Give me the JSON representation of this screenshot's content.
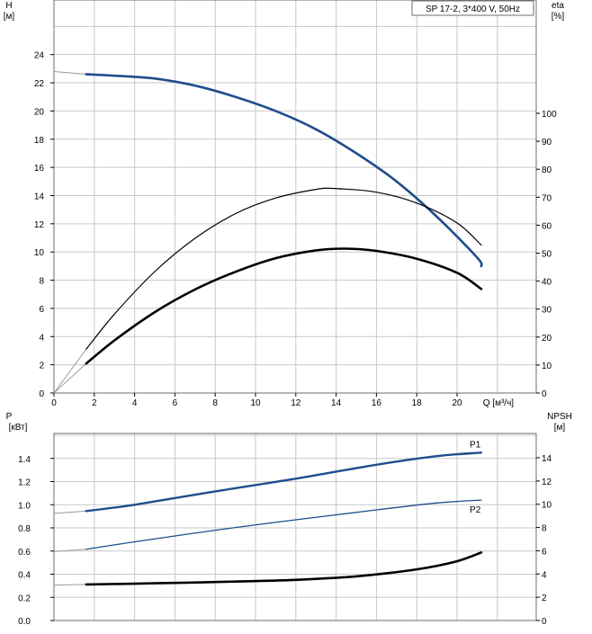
{
  "chart_data": [
    {
      "type": "line",
      "title": "SP 17-2, 3*400 V, 50Hz",
      "xlabel": "Q [м³/ч]",
      "ylabel": "H",
      "ylabel_unit": "[м]",
      "y2label": "eta",
      "y2label_unit": "[%]",
      "xlim": [
        0,
        22
      ],
      "ylim": [
        0,
        26
      ],
      "y2lim": [
        0,
        100
      ],
      "x_ticks": [
        "0",
        "2",
        "4",
        "6",
        "8",
        "10",
        "12",
        "14",
        "16",
        "18",
        "20"
      ],
      "y_ticks": [
        "0",
        "2",
        "4",
        "6",
        "8",
        "10",
        "12",
        "14",
        "16",
        "18",
        "20",
        "22",
        "24"
      ],
      "y2_ticks": [
        "0",
        "10",
        "20",
        "30",
        "40",
        "50",
        "60",
        "70",
        "80",
        "90",
        "100"
      ],
      "grid": true,
      "series": [
        {
          "axis": "left",
          "color": "#1f4e8c",
          "points": [
            [
              1.6,
              22.6
            ],
            [
              3,
              22.5
            ],
            [
              5,
              22.3
            ],
            [
              7,
              21.8
            ],
            [
              9,
              21.0
            ],
            [
              11,
              20.0
            ],
            [
              13,
              18.7
            ],
            [
              15,
              17.0
            ],
            [
              17,
              15.0
            ],
            [
              19,
              12.5
            ],
            [
              21,
              9.6
            ],
            [
              21.2,
              9.0
            ]
          ],
          "extension": [
            [
              0,
              22.8
            ],
            [
              1.6,
              22.6
            ]
          ]
        },
        {
          "axis": "right",
          "color": "#000000",
          "points": [
            [
              1.6,
              15.7
            ],
            [
              3,
              28.2
            ],
            [
              5,
              43.4
            ],
            [
              7,
              55.3
            ],
            [
              9,
              64.1
            ],
            [
              11,
              69.7
            ],
            [
              13,
              72.8
            ],
            [
              14,
              73.1
            ],
            [
              16,
              71.8
            ],
            [
              18,
              67.9
            ],
            [
              20,
              60.8
            ],
            [
              21.2,
              52.9
            ]
          ],
          "extension": [
            [
              0,
              0
            ],
            [
              1.6,
              15.7
            ]
          ]
        },
        {
          "axis": "right",
          "color": "#000000",
          "points": [
            [
              1.6,
              10.5
            ],
            [
              3,
              18.8
            ],
            [
              5,
              28.9
            ],
            [
              7,
              37.0
            ],
            [
              9,
              43.3
            ],
            [
              11,
              48.2
            ],
            [
              13,
              51.0
            ],
            [
              14.5,
              51.6
            ],
            [
              16,
              50.8
            ],
            [
              18,
              48.0
            ],
            [
              20,
              43.0
            ],
            [
              21.2,
              37.2
            ]
          ],
          "extension": [
            [
              0,
              0
            ],
            [
              1.6,
              10.5
            ]
          ]
        }
      ]
    },
    {
      "type": "line",
      "ylabel": "P",
      "ylabel_unit": "[кВт]",
      "y2label": "NPSH",
      "y2label_unit": "[м]",
      "xlim": [
        0,
        22
      ],
      "ylim": [
        0,
        1.6
      ],
      "y2lim": [
        0,
        16
      ],
      "y_ticks": [
        "0.0",
        "0.2",
        "0.4",
        "0.6",
        "0.8",
        "1.0",
        "1.2",
        "1.4"
      ],
      "y2_ticks": [
        "0",
        "2",
        "4",
        "6",
        "8",
        "10",
        "12",
        "14"
      ],
      "grid": true,
      "series": [
        {
          "name": "P1",
          "axis": "left",
          "color": "#1f4e8c",
          "points": [
            [
              1.6,
              0.945
            ],
            [
              4,
              1.0
            ],
            [
              8,
              1.115
            ],
            [
              12,
              1.225
            ],
            [
              16,
              1.345
            ],
            [
              19,
              1.42
            ],
            [
              21.2,
              1.45
            ]
          ],
          "extension": [
            [
              0,
              0.925
            ],
            [
              1.6,
              0.945
            ]
          ]
        },
        {
          "name": "P2",
          "axis": "left",
          "color": "#1f4e8c",
          "points": [
            [
              1.6,
              0.615
            ],
            [
              4,
              0.68
            ],
            [
              8,
              0.78
            ],
            [
              12,
              0.87
            ],
            [
              16,
              0.955
            ],
            [
              19,
              1.015
            ],
            [
              21.2,
              1.04
            ]
          ],
          "extension": [
            [
              0,
              0.595
            ],
            [
              1.6,
              0.615
            ]
          ]
        },
        {
          "axis": "right",
          "color": "#000000",
          "points": [
            [
              1.6,
              3.1
            ],
            [
              5,
              3.2
            ],
            [
              9,
              3.35
            ],
            [
              12,
              3.5
            ],
            [
              15,
              3.8
            ],
            [
              18,
              4.4
            ],
            [
              20,
              5.1
            ],
            [
              21.2,
              5.85
            ]
          ],
          "extension": [
            [
              0,
              3.05
            ],
            [
              1.6,
              3.1
            ]
          ]
        }
      ]
    }
  ]
}
